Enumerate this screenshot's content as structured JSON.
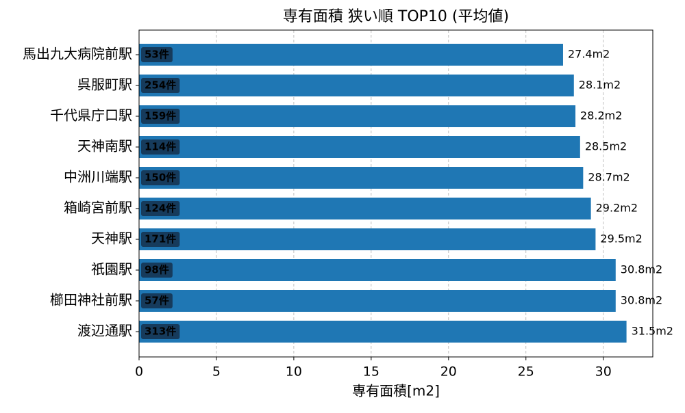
{
  "chart_data": {
    "type": "barh",
    "title": "専有面積 狭い順 TOP10 (平均値)",
    "x_label": "専有面積[m2]",
    "categories": [
      "馬出九大病院前駅",
      "呉服町駅",
      "千代県庁口駅",
      "天神南駅",
      "中洲川端駅",
      "箱崎宮前駅",
      "天神駅",
      "祇園駅",
      "櫛田神社前駅",
      "渡辺通駅"
    ],
    "values": [
      27.4,
      28.1,
      28.2,
      28.5,
      28.7,
      29.2,
      29.5,
      30.8,
      30.8,
      31.5
    ],
    "value_labels": [
      "27.4m2",
      "28.1m2",
      "28.2m2",
      "28.5m2",
      "28.7m2",
      "29.2m2",
      "29.5m2",
      "30.8m2",
      "30.8m2",
      "31.5m2"
    ],
    "annotations": [
      "53件",
      "254件",
      "159件",
      "114件",
      "150件",
      "124件",
      "171件",
      "98件",
      "57件",
      "313件"
    ],
    "color": "#1f77b4",
    "xlim": [
      0,
      33.2
    ],
    "xticks": [
      0,
      5,
      10,
      15,
      20,
      25,
      30
    ],
    "grid": true
  }
}
